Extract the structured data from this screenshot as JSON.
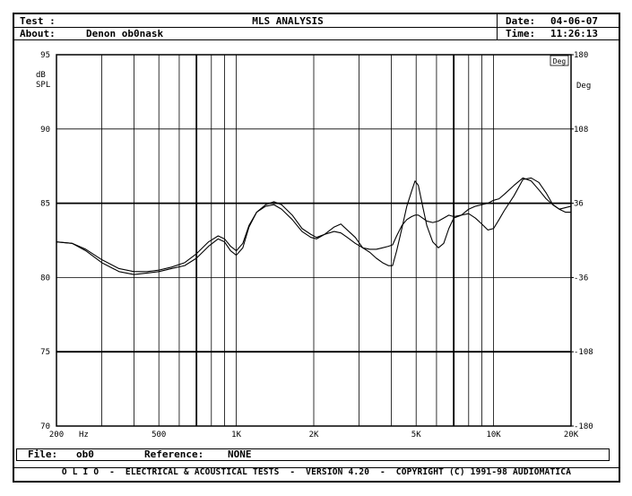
{
  "header": {
    "test_label": "Test :",
    "title": "MLS ANALYSIS",
    "date_label": "Date:",
    "date_value": "04-06-07",
    "about_label": "About:",
    "about_value": "Denon ob0nask",
    "time_label": "Time:",
    "time_value": "11:26:13"
  },
  "footer": {
    "file_label": "File:",
    "file_value": "ob0",
    "reference_label": "Reference:",
    "reference_value": "NONE",
    "copyright": "O L I O  -  ELECTRICAL & ACOUSTICAL TESTS  -  VERSION 4.20  -  COPYRIGHT (C) 1991-98 AUDIOMATICA"
  },
  "chart_data": {
    "type": "line",
    "title": "MLS ANALYSIS",
    "xlabel": "Hz",
    "ylabel": "dB SPL",
    "ylabel_right": "Deg",
    "xscale": "log",
    "xlim": [
      200,
      20000
    ],
    "ylim": [
      70,
      95
    ],
    "y2lim": [
      -180,
      180
    ],
    "yticks": [
      70,
      75,
      80,
      85,
      90,
      95
    ],
    "yticks_labels": [
      "70",
      "75",
      "80",
      "85",
      "90",
      "95"
    ],
    "y2ticks": [
      -180,
      -108,
      -36,
      36,
      108,
      180
    ],
    "y2ticks_labels": [
      "-180",
      "-108",
      "-36",
      "36",
      "108",
      "180"
    ],
    "xticks_labels": [
      {
        "x": 200,
        "label": "200"
      },
      {
        "x": 500,
        "label": "500"
      },
      {
        "x": 1000,
        "label": "1K"
      },
      {
        "x": 2000,
        "label": "2K"
      },
      {
        "x": 5000,
        "label": "5K"
      },
      {
        "x": 10000,
        "label": "10K"
      },
      {
        "x": 20000,
        "label": "20K"
      }
    ],
    "x_extra_tick_text": "Hz",
    "y2_unit_box": "Deg",
    "grid": true,
    "grid_x": [
      300,
      400,
      600,
      700,
      800,
      900,
      3000,
      4000,
      6000,
      7000,
      8000,
      9000
    ],
    "grid_x_bold": [
      700,
      7000
    ],
    "grid_y_bold": [
      75,
      85
    ],
    "series": [
      {
        "points": [
          [
            200,
            82.4
          ],
          [
            230,
            82.3
          ],
          [
            260,
            81.8
          ],
          [
            300,
            81.0
          ],
          [
            350,
            80.4
          ],
          [
            400,
            80.2
          ],
          [
            450,
            80.3
          ],
          [
            500,
            80.4
          ],
          [
            560,
            80.6
          ],
          [
            630,
            80.8
          ],
          [
            700,
            81.3
          ],
          [
            780,
            82.1
          ],
          [
            850,
            82.6
          ],
          [
            900,
            82.4
          ],
          [
            950,
            81.8
          ],
          [
            1000,
            81.5
          ],
          [
            1060,
            82.0
          ],
          [
            1120,
            83.4
          ],
          [
            1200,
            84.4
          ],
          [
            1300,
            84.9
          ],
          [
            1400,
            85.1
          ],
          [
            1500,
            84.9
          ],
          [
            1650,
            84.2
          ],
          [
            1800,
            83.3
          ],
          [
            1950,
            82.9
          ],
          [
            2050,
            82.7
          ],
          [
            2200,
            82.9
          ],
          [
            2400,
            83.4
          ],
          [
            2550,
            83.6
          ],
          [
            2700,
            83.2
          ],
          [
            2900,
            82.7
          ],
          [
            3100,
            82.0
          ],
          [
            3300,
            81.7
          ],
          [
            3500,
            81.3
          ],
          [
            3700,
            81.0
          ],
          [
            3900,
            80.8
          ],
          [
            4050,
            80.8
          ],
          [
            4200,
            81.8
          ],
          [
            4400,
            83.3
          ],
          [
            4600,
            84.8
          ],
          [
            4800,
            85.8
          ],
          [
            4950,
            86.5
          ],
          [
            5100,
            86.2
          ],
          [
            5300,
            84.8
          ],
          [
            5500,
            83.5
          ],
          [
            5800,
            82.4
          ],
          [
            6100,
            82.0
          ],
          [
            6400,
            82.3
          ],
          [
            6700,
            83.3
          ],
          [
            7000,
            84.0
          ],
          [
            7500,
            84.2
          ],
          [
            8000,
            84.3
          ],
          [
            8500,
            84.0
          ],
          [
            9000,
            83.6
          ],
          [
            9500,
            83.2
          ],
          [
            10000,
            83.3
          ],
          [
            10500,
            83.9
          ],
          [
            11000,
            84.5
          ],
          [
            12000,
            85.5
          ],
          [
            13000,
            86.6
          ],
          [
            14000,
            86.7
          ],
          [
            15000,
            86.4
          ],
          [
            16000,
            85.7
          ],
          [
            17000,
            84.9
          ],
          [
            18000,
            84.6
          ],
          [
            19000,
            84.4
          ],
          [
            20000,
            84.4
          ]
        ]
      },
      {
        "points": [
          [
            200,
            82.4
          ],
          [
            230,
            82.3
          ],
          [
            260,
            81.9
          ],
          [
            300,
            81.2
          ],
          [
            350,
            80.6
          ],
          [
            400,
            80.4
          ],
          [
            450,
            80.4
          ],
          [
            500,
            80.5
          ],
          [
            560,
            80.7
          ],
          [
            630,
            81.0
          ],
          [
            700,
            81.6
          ],
          [
            780,
            82.4
          ],
          [
            850,
            82.8
          ],
          [
            900,
            82.6
          ],
          [
            950,
            82.1
          ],
          [
            1000,
            81.8
          ],
          [
            1060,
            82.3
          ],
          [
            1120,
            83.5
          ],
          [
            1200,
            84.4
          ],
          [
            1300,
            84.8
          ],
          [
            1400,
            84.9
          ],
          [
            1500,
            84.6
          ],
          [
            1650,
            83.9
          ],
          [
            1800,
            83.1
          ],
          [
            1950,
            82.7
          ],
          [
            2050,
            82.6
          ],
          [
            2200,
            82.9
          ],
          [
            2400,
            83.1
          ],
          [
            2550,
            83.0
          ],
          [
            2700,
            82.7
          ],
          [
            2900,
            82.3
          ],
          [
            3100,
            82.0
          ],
          [
            3300,
            81.9
          ],
          [
            3500,
            81.9
          ],
          [
            3700,
            82.0
          ],
          [
            3900,
            82.1
          ],
          [
            4050,
            82.2
          ],
          [
            4200,
            82.8
          ],
          [
            4400,
            83.5
          ],
          [
            4600,
            83.9
          ],
          [
            4800,
            84.1
          ],
          [
            4950,
            84.2
          ],
          [
            5100,
            84.2
          ],
          [
            5300,
            84.0
          ],
          [
            5500,
            83.8
          ],
          [
            5800,
            83.7
          ],
          [
            6100,
            83.8
          ],
          [
            6400,
            84.0
          ],
          [
            6700,
            84.2
          ],
          [
            7000,
            84.1
          ],
          [
            7500,
            84.2
          ],
          [
            8000,
            84.6
          ],
          [
            8500,
            84.8
          ],
          [
            9000,
            84.9
          ],
          [
            9500,
            85.0
          ],
          [
            10000,
            85.2
          ],
          [
            10500,
            85.3
          ],
          [
            11000,
            85.6
          ],
          [
            12000,
            86.2
          ],
          [
            13000,
            86.7
          ],
          [
            14000,
            86.5
          ],
          [
            15000,
            85.9
          ],
          [
            16000,
            85.3
          ],
          [
            17000,
            84.9
          ],
          [
            18000,
            84.6
          ],
          [
            19000,
            84.7
          ],
          [
            20000,
            84.8
          ]
        ]
      }
    ]
  }
}
